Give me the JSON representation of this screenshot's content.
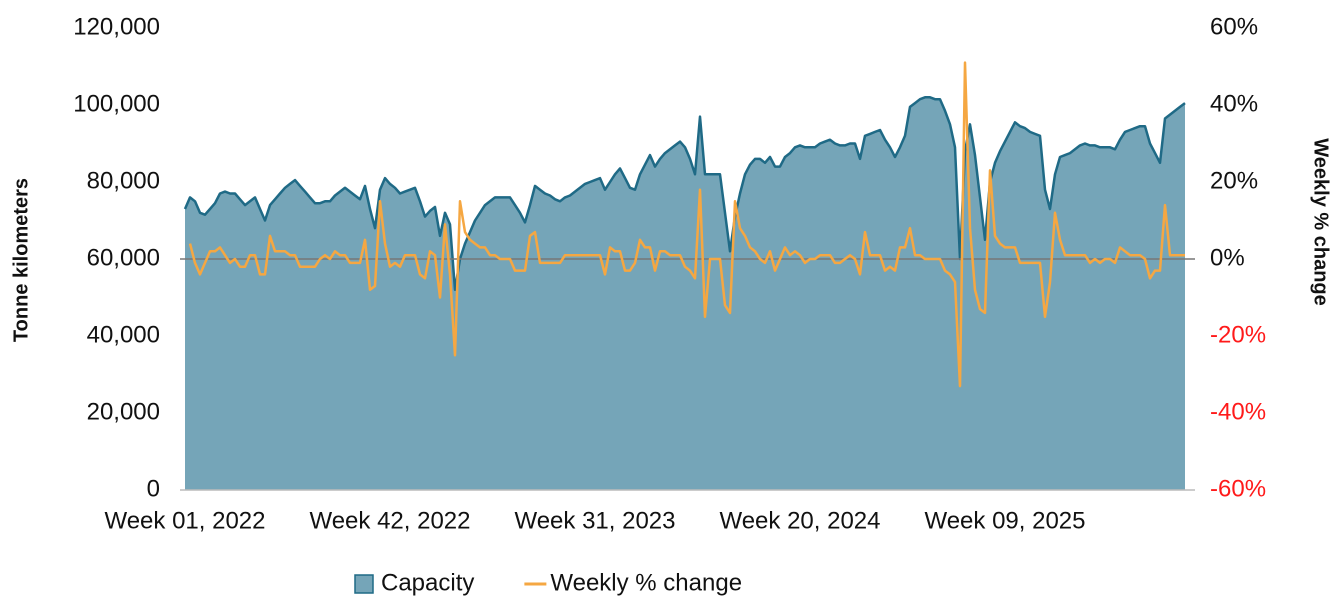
{
  "chart_data": {
    "type": "area_line",
    "ylabel": "Tonne kilometers",
    "y2label": "Weekly % change",
    "categories": [
      "Week 01, 2022",
      null,
      null,
      null,
      null,
      null,
      null,
      null,
      null,
      null,
      null,
      null,
      null,
      null,
      null,
      null,
      null,
      null,
      null,
      null,
      null,
      null,
      null,
      null,
      null,
      null,
      null,
      null,
      null,
      null,
      null,
      null,
      null,
      null,
      null,
      null,
      null,
      null,
      null,
      null,
      null,
      "Week 42, 2022",
      null,
      null,
      null,
      null,
      null,
      null,
      null,
      null,
      null,
      null,
      null,
      null,
      null,
      null,
      null,
      null,
      null,
      null,
      null,
      null,
      null,
      null,
      null,
      null,
      null,
      null,
      null,
      null,
      null,
      null,
      null,
      null,
      null,
      null,
      null,
      null,
      null,
      null,
      null,
      null,
      "Week 31, 2023",
      null,
      null,
      null,
      null,
      null,
      null,
      null,
      null,
      null,
      null,
      null,
      null,
      null,
      null,
      null,
      null,
      null,
      null,
      null,
      null,
      null,
      null,
      null,
      null,
      null,
      null,
      null,
      null,
      null,
      null,
      null,
      null,
      null,
      null,
      null,
      null,
      null,
      null,
      null,
      null,
      "Week 20, 2024",
      null,
      null,
      null,
      null,
      null,
      null,
      null,
      null,
      null,
      null,
      null,
      null,
      null,
      null,
      null,
      null,
      null,
      null,
      null,
      null,
      null,
      null,
      null,
      null,
      null,
      null,
      null,
      null,
      null,
      null,
      null,
      null,
      null,
      null,
      null,
      null,
      null,
      null,
      null,
      null,
      "Week 09, 2025",
      null,
      null,
      null,
      null,
      null,
      null,
      null,
      null,
      null,
      null,
      null,
      null,
      null,
      null,
      null,
      null,
      null,
      null,
      null,
      null,
      null,
      null,
      null,
      null,
      null,
      null,
      null,
      null,
      null,
      null,
      null,
      null,
      null,
      null,
      null,
      null
    ],
    "series": [
      {
        "name": "Capacity",
        "color": "#75a5b8",
        "line_color": "#1f6a86",
        "values": [
          73000,
          76000,
          75000,
          72000,
          71500,
          73000,
          74500,
          77000,
          77500,
          77000,
          77000,
          75500,
          74000,
          75000,
          76000,
          73000,
          70000,
          74000,
          75500,
          77000,
          78500,
          79500,
          80500,
          79000,
          77500,
          76000,
          74500,
          74500,
          75000,
          75000,
          76500,
          77500,
          78500,
          77500,
          76500,
          75500,
          79000,
          73000,
          68000,
          78000,
          81000,
          79500,
          78500,
          77000,
          77500,
          78000,
          78500,
          75000,
          71000,
          72500,
          73500,
          66000,
          72000,
          69000,
          52000,
          60000,
          64000,
          67000,
          70000,
          72000,
          74000,
          75000,
          76000,
          76000,
          76000,
          76000,
          74000,
          72000,
          69500,
          74000,
          79000,
          78000,
          77000,
          76500,
          75500,
          75000,
          76000,
          76500,
          77500,
          78500,
          79500,
          80000,
          80500,
          81000,
          78000,
          80000,
          82000,
          83500,
          81000,
          78500,
          78000,
          82000,
          84500,
          87000,
          84000,
          86000,
          87500,
          88500,
          89500,
          90500,
          89000,
          86000,
          82000,
          97000,
          82000,
          82000,
          82000,
          82000,
          72000,
          62000,
          71000,
          77000,
          82000,
          84500,
          86000,
          86000,
          85000,
          86500,
          84000,
          84000,
          86500,
          87500,
          89000,
          89500,
          89000,
          89000,
          89000,
          90000,
          90500,
          91000,
          90000,
          89500,
          89500,
          90000,
          90000,
          86000,
          92000,
          92500,
          93000,
          93500,
          91000,
          89000,
          86500,
          89000,
          92000,
          99500,
          100500,
          101500,
          102000,
          102000,
          101500,
          101500,
          98500,
          95000,
          89000,
          60000,
          88000,
          95000,
          87000,
          76000,
          65000,
          80000,
          85000,
          88000,
          90500,
          93000,
          95500,
          94500,
          94000,
          93000,
          92500,
          92000,
          78000,
          73000,
          82000,
          86500,
          87000,
          87500,
          88500,
          89500,
          90000,
          89500,
          89500,
          89000,
          89000,
          89000,
          88500,
          91000,
          93000,
          93500,
          94000,
          94500,
          94500,
          90000,
          87500,
          85000,
          96500,
          97500,
          98500,
          99500,
          100500
        ]
      },
      {
        "name": "Weekly % change",
        "color": "#f5a742",
        "axis": "y2",
        "values": [
          null,
          4,
          -1,
          -4,
          -1,
          2,
          2,
          3,
          1,
          -1,
          0,
          -2,
          -2,
          1,
          1,
          -4,
          -4,
          6,
          2,
          2,
          2,
          1,
          1,
          -2,
          -2,
          -2,
          -2,
          0,
          1,
          0,
          2,
          1,
          1,
          -1,
          -1,
          -1,
          5,
          -8,
          -7,
          15,
          4,
          -2,
          -1,
          -2,
          1,
          1,
          1,
          -4,
          -5,
          2,
          1,
          -10,
          9,
          -4,
          -25,
          15,
          7,
          5,
          4,
          3,
          3,
          1,
          1,
          0,
          0,
          0,
          -3,
          -3,
          -3,
          6,
          7,
          -1,
          -1,
          -1,
          -1,
          -1,
          1,
          1,
          1,
          1,
          1,
          1,
          1,
          1,
          -4,
          3,
          2,
          2,
          -3,
          -3,
          -1,
          5,
          3,
          3,
          -3,
          2,
          2,
          1,
          1,
          1,
          -2,
          -3,
          -5,
          18,
          -15,
          0,
          0,
          0,
          -12,
          -14,
          15,
          8,
          6,
          3,
          2,
          0,
          -1,
          2,
          -3,
          0,
          3,
          1,
          2,
          1,
          -1,
          0,
          0,
          1,
          1,
          1,
          -1,
          -1,
          0,
          1,
          0,
          -4,
          7,
          1,
          1,
          1,
          -3,
          -2,
          -3,
          3,
          3,
          8,
          1,
          1,
          0,
          0,
          0,
          0,
          -3,
          -4,
          -6,
          -33,
          51,
          8,
          -8,
          -13,
          -14,
          23,
          6,
          4,
          3,
          3,
          3,
          -1,
          -1,
          -1,
          -1,
          -1,
          -15,
          -6,
          12,
          5,
          1,
          1,
          1,
          1,
          1,
          -1,
          0,
          -1,
          0,
          0,
          -1,
          3,
          2,
          1,
          1,
          1,
          0,
          -5,
          -3,
          -3,
          14,
          1,
          1,
          1,
          1
        ]
      }
    ],
    "ylim": [
      0,
      120000
    ],
    "yticks": [
      0,
      {
        "value": 20000,
        "label": "20,000"
      },
      {
        "value": 40000,
        "label": "40,000"
      },
      {
        "value": 60000,
        "label": "60,000"
      },
      {
        "value": 80000,
        "label": "80,000"
      },
      {
        "value": 100000,
        "label": "100,000"
      },
      {
        "value": 120000,
        "label": "120,000"
      }
    ],
    "y2lim": [
      -60,
      60
    ],
    "y2ticks": [
      {
        "value": -60,
        "label": "-60%"
      },
      {
        "value": -40,
        "label": "-40%"
      },
      {
        "value": -20,
        "label": "-20%"
      },
      {
        "value": 0,
        "label": "0%"
      },
      {
        "value": 20,
        "label": "20%"
      },
      {
        "value": 40,
        "label": "40%"
      },
      {
        "value": 60,
        "label": "60%"
      }
    ],
    "y2_negative_color": "#ff1a1a",
    "legend": "bottom"
  }
}
